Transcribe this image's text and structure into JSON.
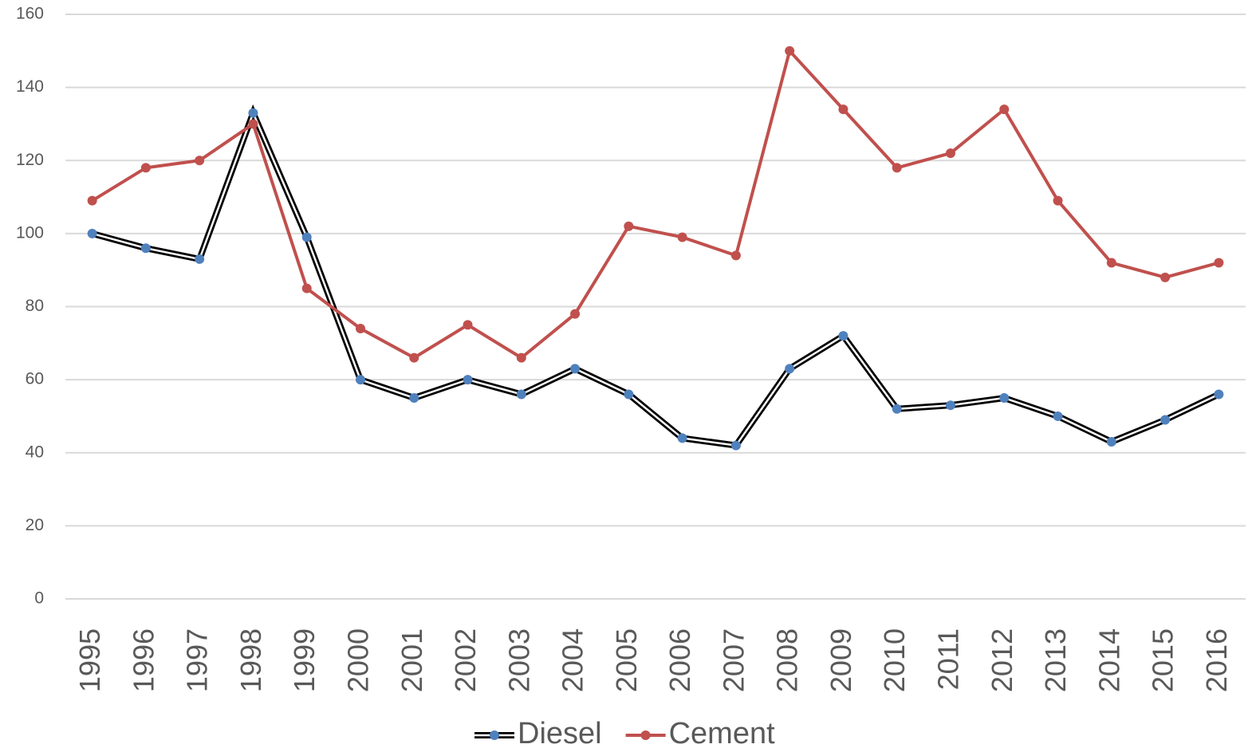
{
  "chart_data": {
    "type": "line",
    "categories": [
      "1995",
      "1996",
      "1997",
      "1998",
      "1999",
      "2000",
      "2001",
      "2002",
      "2003",
      "2004",
      "2005",
      "2006",
      "2007",
      "2008",
      "2009",
      "2010",
      "2011",
      "2012",
      "2013",
      "2014",
      "2015",
      "2016"
    ],
    "series": [
      {
        "name": "Diesel",
        "color": "#4f81bd",
        "values": [
          100,
          96,
          93,
          133,
          99,
          60,
          55,
          60,
          56,
          63,
          56,
          44,
          42,
          63,
          72,
          52,
          53,
          55,
          50,
          43,
          49,
          56
        ]
      },
      {
        "name": "Cement",
        "color": "#c0504d",
        "values": [
          109,
          118,
          120,
          130,
          85,
          74,
          66,
          75,
          66,
          78,
          102,
          99,
          94,
          150,
          134,
          118,
          122,
          134,
          109,
          92,
          88,
          92
        ]
      }
    ],
    "ylim": [
      0,
      160
    ],
    "yticks": [
      0,
      20,
      40,
      60,
      80,
      100,
      120,
      140,
      160
    ],
    "grid": true,
    "legend": "bottom"
  }
}
